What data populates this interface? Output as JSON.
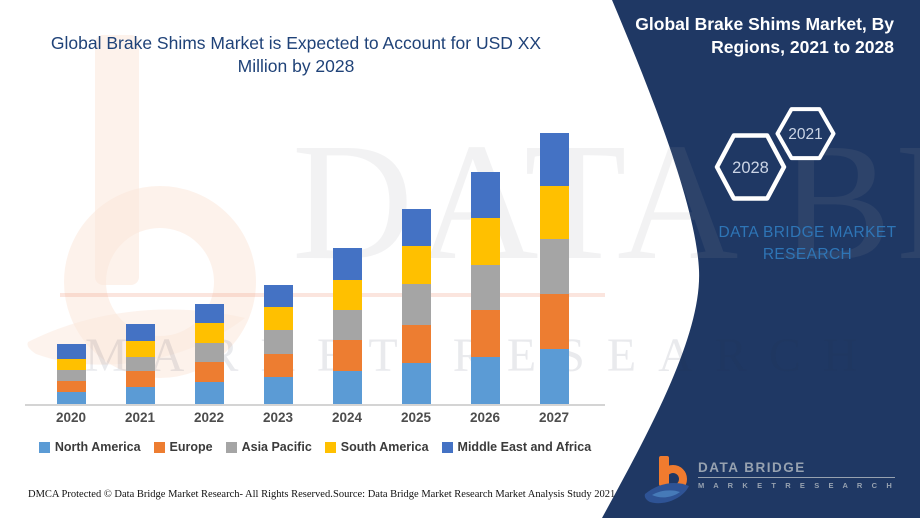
{
  "chart_data": {
    "type": "bar",
    "stacked": true,
    "title": "Global Brake Shims Market is Expected to Account for USD XX Million by 2028",
    "categories": [
      "2020",
      "2021",
      "2022",
      "2023",
      "2024",
      "2025",
      "2026",
      "2027"
    ],
    "series": [
      {
        "name": "North America",
        "color": "#5B9BD5",
        "values": [
          12,
          17,
          22,
          27,
          33,
          41,
          47,
          55
        ]
      },
      {
        "name": "Europe",
        "color": "#ED7D31",
        "values": [
          11,
          16,
          20,
          23,
          31,
          38,
          47,
          55
        ]
      },
      {
        "name": "Asia Pacific",
        "color": "#A5A5A5",
        "values": [
          11,
          14,
          19,
          24,
          30,
          41,
          45,
          55
        ]
      },
      {
        "name": "South America",
        "color": "#FFC000",
        "values": [
          11,
          16,
          20,
          23,
          30,
          38,
          47,
          53
        ]
      },
      {
        "name": "Middle East and Africa",
        "color": "#4472C4",
        "values": [
          15,
          17,
          19,
          22,
          32,
          37,
          46,
          53
        ]
      }
    ],
    "xlabel": "",
    "ylabel": "",
    "y_axis_visible": false,
    "grid": false,
    "legend_position": "bottom"
  },
  "left_title": {
    "line1": "Global Brake Shims Market is Expected to Account for USD XX",
    "line2": "Million by 2028"
  },
  "panel": {
    "title_line1": "Global Brake Shims Market, By",
    "title_line2": "Regions, 2021 to 2028",
    "hexagon_left_label": "2028",
    "hexagon_right_label": "2021",
    "brand_line1": "DATA BRIDGE MARKET",
    "brand_line2": "RESEARCH",
    "background_color": "#1F3864",
    "brand_color": "#2E75B6"
  },
  "watermark": {
    "line1": "DATA BRIDGE",
    "line2": "MARKET RESEARCH"
  },
  "logo": {
    "name": "DATA BRIDGE",
    "subtitle": "M A R K E T   R E S E A R C H"
  },
  "footer": {
    "left": "DMCA Protected © Data Bridge Market Research- All Rights Reserved.",
    "source": "Source: Data Bridge Market Research Market Analysis Study 2021"
  }
}
